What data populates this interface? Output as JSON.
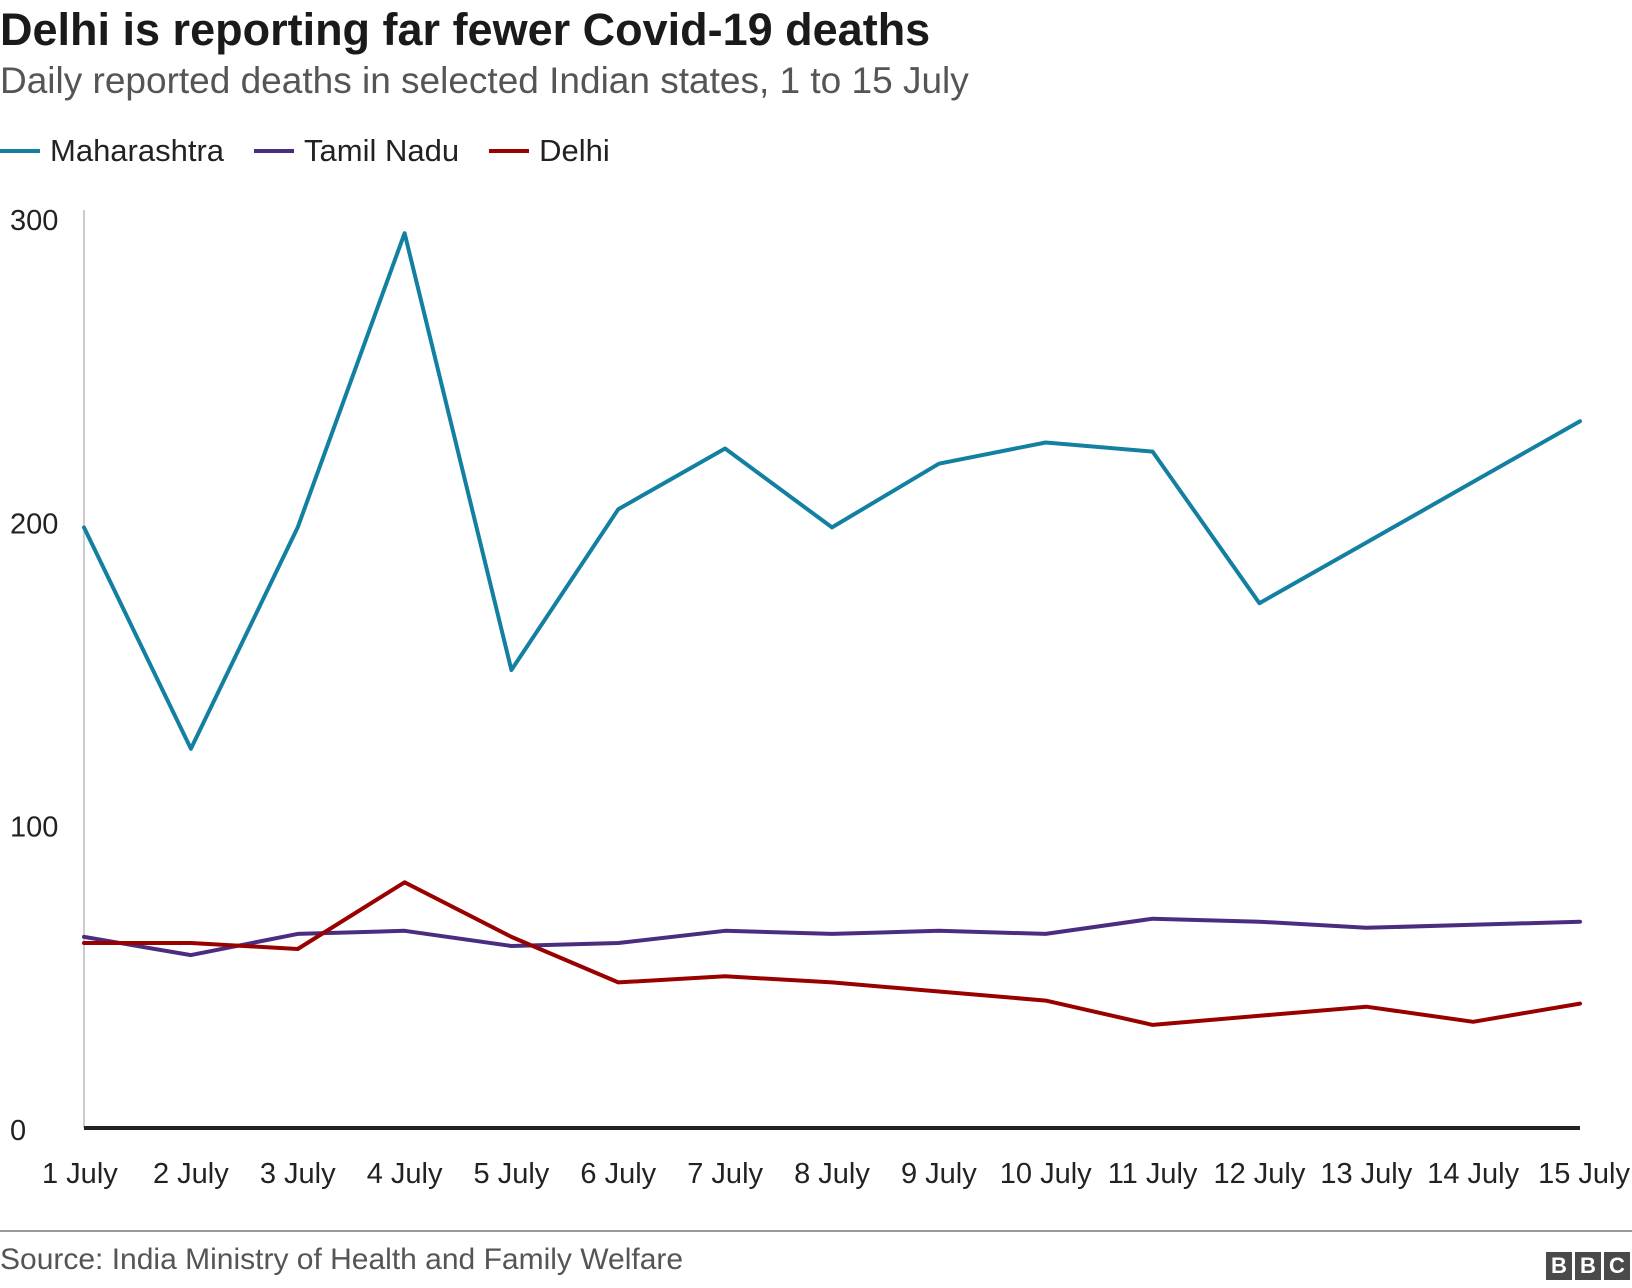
{
  "title": "Delhi is reporting far fewer Covid-19 deaths",
  "subtitle": "Daily reported deaths in selected Indian states, 1 to 15 July",
  "source": "Source: India Ministry of Health and Family Welfare",
  "logo": [
    "B",
    "B",
    "C"
  ],
  "chart_data": {
    "type": "line",
    "categories": [
      "1 July",
      "2 July",
      "3 July",
      "4 July",
      "5 July",
      "6 July",
      "7 July",
      "8 July",
      "9 July",
      "10 July",
      "11 July",
      "12 July",
      "13 July",
      "14 July",
      "15 July"
    ],
    "ylim": [
      0,
      300
    ],
    "yticks": [
      0,
      100,
      200,
      300
    ],
    "grid": false,
    "legend_position": "top-left",
    "series": [
      {
        "name": "Maharashtra",
        "color": "#1380a1",
        "values": [
          198,
          125,
          198,
          295,
          151,
          204,
          224,
          198,
          219,
          226,
          223,
          173,
          193,
          213,
          233
        ]
      },
      {
        "name": "Tamil Nadu",
        "color": "#4b2d7f",
        "values": [
          63,
          57,
          64,
          65,
          60,
          61,
          65,
          64,
          65,
          64,
          69,
          68,
          66,
          67,
          68
        ]
      },
      {
        "name": "Delhi",
        "color": "#990000",
        "values": [
          61,
          61,
          59,
          81,
          63,
          48,
          50,
          48,
          45,
          42,
          34,
          37,
          40,
          35,
          41
        ]
      }
    ]
  }
}
